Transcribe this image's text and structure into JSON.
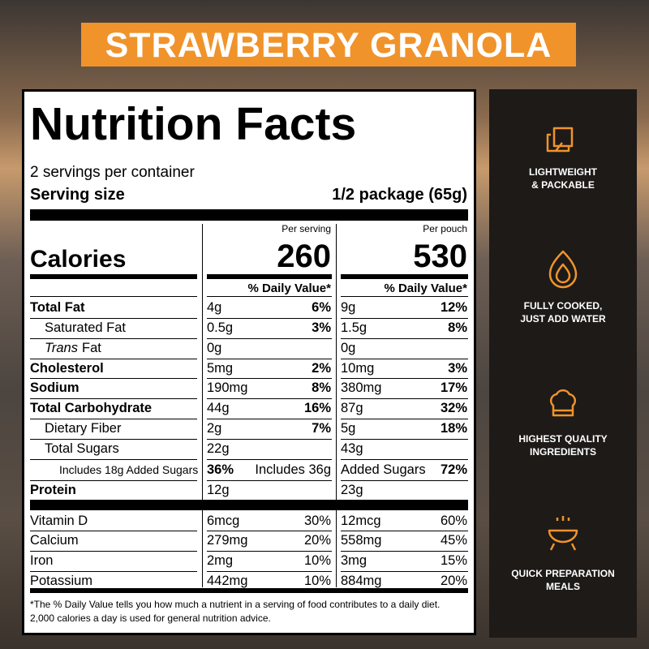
{
  "banner": {
    "title": "STRAWBERRY GRANOLA"
  },
  "label": {
    "title": "Nutrition Facts",
    "servings": "2 servings per container",
    "serving_size_label": "Serving size",
    "serving_size_value": "1/2 package (65g)",
    "calories_label": "Calories",
    "columns": [
      {
        "heading": "Per serving",
        "calories": "260",
        "dv_heading": "% Daily Value*"
      },
      {
        "heading": "Per pouch",
        "calories": "530",
        "dv_heading": "% Daily Value*"
      }
    ],
    "rows": [
      {
        "name": "Total Fat",
        "bold": true,
        "indent": 0,
        "cells": [
          [
            "4g",
            "6%"
          ],
          [
            "9g",
            "12%"
          ]
        ],
        "bold_cells": [
          [
            1
          ],
          [
            1
          ]
        ]
      },
      {
        "name": "Saturated Fat",
        "indent": 1,
        "cells": [
          [
            "0.5g",
            "3%"
          ],
          [
            "1.5g",
            "8%"
          ]
        ],
        "bold_cells": [
          [
            1
          ],
          [
            1
          ]
        ]
      },
      {
        "italic_prefix": "Trans",
        "name": "Fat",
        "indent": 1,
        "cells": [
          [
            "0g"
          ],
          [
            "0g"
          ]
        ]
      },
      {
        "name": "Cholesterol",
        "bold": true,
        "indent": 0,
        "cells": [
          [
            "5mg",
            "2%"
          ],
          [
            "10mg",
            "3%"
          ]
        ],
        "bold_cells": [
          [
            1
          ],
          [
            1
          ]
        ]
      },
      {
        "name": "Sodium",
        "bold": true,
        "indent": 0,
        "cells": [
          [
            "190mg",
            "8%"
          ],
          [
            "380mg",
            "17%"
          ]
        ],
        "bold_cells": [
          [
            1
          ],
          [
            1
          ]
        ]
      },
      {
        "name": "Total Carbohydrate",
        "bold": true,
        "indent": 0,
        "cells": [
          [
            "44g",
            "16%"
          ],
          [
            "87g",
            "32%"
          ]
        ],
        "bold_cells": [
          [
            1
          ],
          [
            1
          ]
        ]
      },
      {
        "name": "Dietary Fiber",
        "indent": 1,
        "cells": [
          [
            "2g",
            "7%"
          ],
          [
            "5g",
            "18%"
          ]
        ],
        "bold_cells": [
          [
            1
          ],
          [
            1
          ]
        ]
      },
      {
        "name": "Total Sugars",
        "indent": 1,
        "cells": [
          [
            "22g"
          ],
          [
            "43g"
          ]
        ]
      },
      {
        "name": "Includes 18g Added Sugars",
        "indent": 2,
        "cells": [
          [
            "36%",
            "Includes 36g"
          ],
          [
            "Added Sugars",
            "72%"
          ]
        ],
        "bold_cells": [
          [
            0
          ],
          [
            1
          ]
        ]
      },
      {
        "name": "Protein",
        "bold": true,
        "indent": 0,
        "cells": [
          [
            "12g"
          ],
          [
            "23g"
          ]
        ],
        "thick_after": true
      },
      {
        "name": "Vitamin D",
        "indent": 0,
        "cells": [
          [
            "6mcg",
            "30%"
          ],
          [
            "12mcg",
            "60%"
          ]
        ]
      },
      {
        "name": "Calcium",
        "indent": 0,
        "cells": [
          [
            "279mg",
            "20%"
          ],
          [
            "558mg",
            "45%"
          ]
        ]
      },
      {
        "name": "Iron",
        "indent": 0,
        "cells": [
          [
            "2mg",
            "10%"
          ],
          [
            "3mg",
            "15%"
          ]
        ]
      },
      {
        "name": "Potassium",
        "indent": 0,
        "cells": [
          [
            "442mg",
            "10%"
          ],
          [
            "884mg",
            "20%"
          ]
        ]
      }
    ],
    "footnote": [
      "*The % Daily Value tells you how much a nutrient in a serving of food contributes to a daily diet.",
      "2,000 calories a day is used for general nutrition advice."
    ]
  },
  "features": [
    {
      "lines": [
        "LIGHTWEIGHT",
        "& PACKABLE"
      ]
    },
    {
      "lines": [
        "FULLY COOKED,",
        "JUST ADD WATER"
      ]
    },
    {
      "lines": [
        "HIGHEST QUALITY",
        "INGREDIENTS"
      ]
    },
    {
      "lines": [
        "QUICK PREPARATION",
        "MEALS"
      ]
    }
  ]
}
